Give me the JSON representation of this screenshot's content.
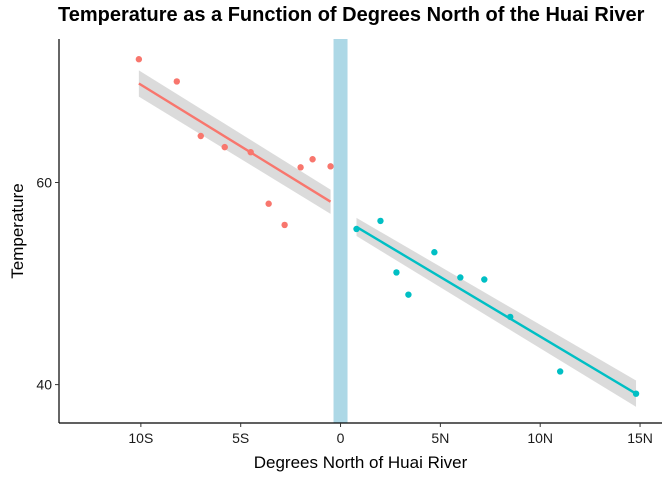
{
  "chart_data": {
    "type": "scatter",
    "title": "Temperature as a Function of Degrees North of the Huai River",
    "xlabel": "Degrees North of Huai River",
    "ylabel": "Temperature",
    "x_ticks": [
      {
        "value": -10,
        "label": "10S"
      },
      {
        "value": -5,
        "label": "5S"
      },
      {
        "value": 0,
        "label": "0"
      },
      {
        "value": 5,
        "label": "5N"
      },
      {
        "value": 10,
        "label": "10N"
      },
      {
        "value": 15,
        "label": "15N"
      }
    ],
    "y_ticks": [
      {
        "value": 40,
        "label": "40"
      },
      {
        "value": 60,
        "label": "60"
      }
    ],
    "xlim": [
      -14.1,
      16.1
    ],
    "ylim": [
      36.2,
      74.2
    ],
    "grid": false,
    "legend": "none",
    "cutoff": {
      "x": 0,
      "color": "#ADD8E6"
    },
    "series": [
      {
        "color": "#F8766D",
        "points": [
          [
            -10.1,
            72.2
          ],
          [
            -8.2,
            70.0
          ],
          [
            -7.0,
            64.6
          ],
          [
            -5.8,
            63.5
          ],
          [
            -4.5,
            63.0
          ],
          [
            -3.6,
            57.9
          ],
          [
            -2.8,
            55.8
          ],
          [
            -2.0,
            61.5
          ],
          [
            -1.4,
            62.3
          ],
          [
            -0.5,
            61.6
          ]
        ],
        "fit": {
          "x": [
            -10.1,
            -0.5
          ],
          "y": [
            69.8,
            58.1
          ],
          "se_low": [
            68.5,
            56.9
          ],
          "se_high": [
            71.1,
            59.3
          ]
        }
      },
      {
        "color": "#00BFC4",
        "points": [
          [
            0.8,
            55.4
          ],
          [
            2.0,
            56.2
          ],
          [
            2.8,
            51.1
          ],
          [
            3.4,
            48.9
          ],
          [
            4.7,
            53.1
          ],
          [
            6.0,
            50.6
          ],
          [
            7.2,
            50.4
          ],
          [
            8.5,
            46.7
          ],
          [
            11.0,
            41.3
          ],
          [
            14.8,
            39.1
          ]
        ],
        "fit": {
          "x": [
            0.8,
            14.8
          ],
          "y": [
            55.6,
            39.1
          ],
          "se_low": [
            54.7,
            37.8
          ],
          "se_high": [
            56.5,
            40.4
          ]
        }
      }
    ]
  }
}
